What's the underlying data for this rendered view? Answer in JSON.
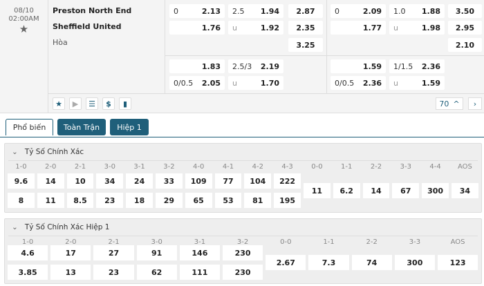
{
  "match": {
    "date": "08/10",
    "time": "02:00AM",
    "home": "Preston North End",
    "away": "Sheffield United",
    "draw": "Hòa"
  },
  "odds": {
    "full": [
      [
        {
          "l": "0",
          "v": "2.13"
        },
        {
          "l": "2.5",
          "v": "1.94"
        },
        {
          "l": "",
          "v": "2.87"
        }
      ],
      [
        {
          "l": "",
          "v": "1.76"
        },
        {
          "l": "u",
          "v": "1.92"
        },
        {
          "l": "",
          "v": "2.35"
        }
      ],
      [
        null,
        null,
        {
          "l": "",
          "v": "3.25"
        }
      ]
    ],
    "full_alt": [
      [
        {
          "l": "",
          "v": "1.83"
        },
        {
          "l": "2.5/3",
          "v": "2.19"
        },
        null
      ],
      [
        {
          "l": "0/0.5",
          "v": "2.05"
        },
        {
          "l": "u",
          "v": "1.70"
        },
        null
      ]
    ],
    "half": [
      [
        {
          "l": "0",
          "v": "2.09"
        },
        {
          "l": "1.0",
          "v": "1.88"
        },
        {
          "l": "",
          "v": "3.50"
        }
      ],
      [
        {
          "l": "",
          "v": "1.77"
        },
        {
          "l": "u",
          "v": "1.98"
        },
        {
          "l": "",
          "v": "2.95"
        }
      ],
      [
        null,
        null,
        {
          "l": "",
          "v": "2.10"
        }
      ]
    ],
    "half_alt": [
      [
        {
          "l": "",
          "v": "1.59"
        },
        {
          "l": "1/1.5",
          "v": "2.36"
        },
        null
      ],
      [
        {
          "l": "0/0.5",
          "v": "2.36"
        },
        {
          "l": "u",
          "v": "1.59"
        },
        null
      ]
    ]
  },
  "toolbar": {
    "more_count": "70",
    "icons": [
      "star-icon",
      "play-icon",
      "list-icon",
      "dollar-icon",
      "stats-icon"
    ]
  },
  "tabs": [
    "Phổ biến",
    "Toàn Trận",
    "Hiệp 1"
  ],
  "correct_score": {
    "title": "Tỷ Số Chính Xác",
    "home_labels": [
      "1-0",
      "2-0",
      "2-1",
      "3-0",
      "3-1",
      "3-2",
      "4-0",
      "4-1",
      "4-2",
      "4-3"
    ],
    "home": [
      "9.6",
      "14",
      "10",
      "34",
      "24",
      "33",
      "109",
      "77",
      "104",
      "222"
    ],
    "away": [
      "8",
      "11",
      "8.5",
      "23",
      "18",
      "29",
      "65",
      "53",
      "81",
      "195"
    ],
    "draw_labels": [
      "0-0",
      "1-1",
      "2-2",
      "3-3",
      "4-4",
      "AOS"
    ],
    "draw": [
      "11",
      "6.2",
      "14",
      "67",
      "300",
      "34"
    ]
  },
  "correct_score_half": {
    "title": "Tỷ Số Chính Xác Hiệp 1",
    "home_labels": [
      "1-0",
      "2-0",
      "2-1",
      "3-0",
      "3-1",
      "3-2"
    ],
    "home": [
      "4.6",
      "17",
      "27",
      "91",
      "146",
      "230"
    ],
    "away": [
      "3.85",
      "13",
      "23",
      "62",
      "111",
      "230"
    ],
    "draw_labels": [
      "0-0",
      "1-1",
      "2-2",
      "3-3",
      "AOS"
    ],
    "draw": [
      "2.67",
      "7.3",
      "74",
      "300",
      "123"
    ]
  },
  "colors": {
    "accent": "#1f5f7a"
  }
}
